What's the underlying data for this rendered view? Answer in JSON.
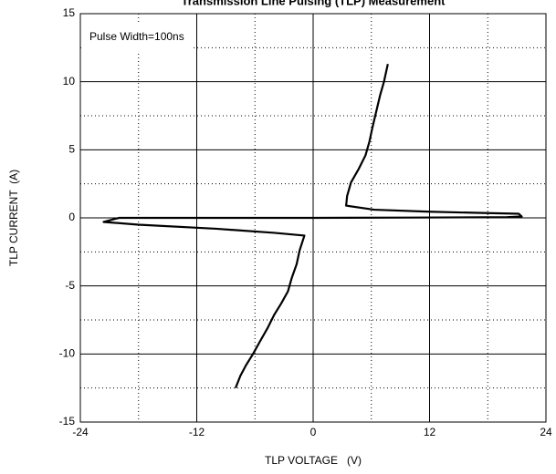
{
  "chart_data": {
    "type": "line",
    "title": "Transmission Line Pulsing (TLP) Measurement",
    "annotation": "Pulse Width=100ns",
    "x_label": "TLP VOLTAGE   (V)",
    "y_label": "TLP CURRENT  (A)",
    "x": [
      7.7,
      7.3,
      6.9,
      6.5,
      6.1,
      5.8,
      5.4,
      4.7,
      3.9,
      3.5,
      3.4,
      6.3,
      12,
      18,
      21.2,
      21.5,
      20,
      10,
      0,
      -10,
      -20,
      -21.6,
      -18,
      -10,
      -4,
      -0.9,
      -1.4,
      -1.7,
      -2.2,
      -2.6,
      -3.3,
      -4,
      -4.7,
      -5.5,
      -6.2,
      -6.9,
      -7.5,
      -8
    ],
    "series": [
      {
        "name": "TLP",
        "color": "#000000",
        "values": [
          11.3,
          10,
          9,
          7.8,
          6.6,
          5.6,
          4.6,
          3.6,
          2.6,
          1.6,
          0.9,
          0.6,
          0.45,
          0.35,
          0.3,
          0.1,
          0.05,
          0.02,
          0,
          0,
          0,
          -0.3,
          -0.5,
          -0.8,
          -1.1,
          -1.3,
          -2.4,
          -3.4,
          -4.4,
          -5.4,
          -6.3,
          -7.1,
          -8.1,
          -9.1,
          -10,
          -10.8,
          -11.6,
          -12.5
        ]
      }
    ],
    "xlim": [
      -24,
      24
    ],
    "ylim": [
      -15,
      15
    ],
    "xticks": [
      -24,
      -12,
      0,
      12,
      24
    ],
    "yticks": [
      -15,
      -10,
      -5,
      0,
      5,
      10,
      15
    ],
    "x_minor_grid": [
      -18,
      -6,
      6,
      18
    ],
    "y_minor_grid": [
      -12.5,
      -7.5,
      -2.5,
      2.5,
      7.5,
      12.5
    ],
    "grid": true
  }
}
